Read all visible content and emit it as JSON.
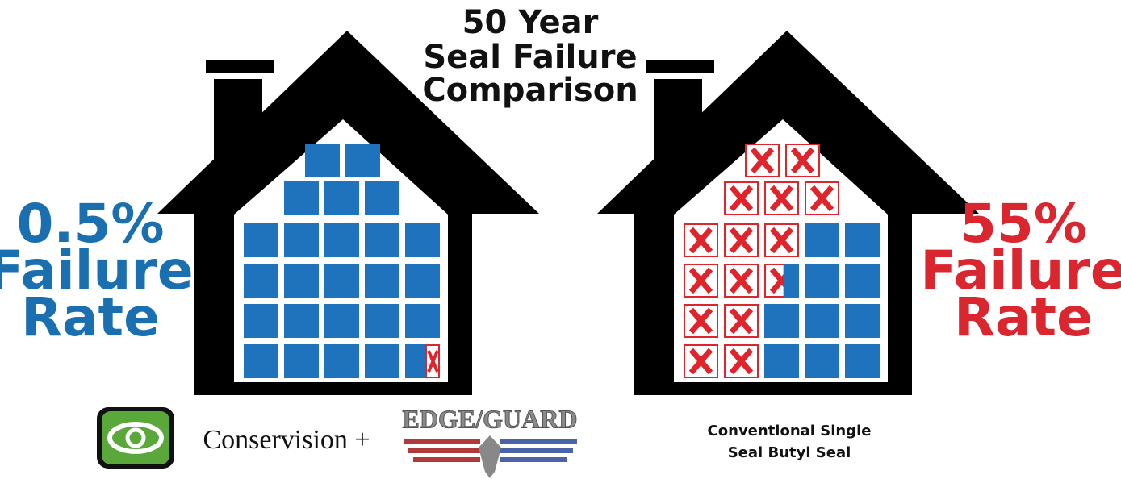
{
  "title": {
    "lines": [
      "50 Year",
      "Seal Failure",
      "Comparison"
    ]
  },
  "left": {
    "rate": "0.5%",
    "label_lines": [
      "Failure",
      "Rate"
    ]
  },
  "right": {
    "rate": "55%",
    "label_lines": [
      "Failure",
      "Rate"
    ]
  },
  "brands": {
    "conservision": "Conservision +",
    "edgeguard": "EDGE/GUARD"
  },
  "right_caption": {
    "lines": [
      "Conventional Single",
      "Seal Butyl Seal"
    ]
  }
}
